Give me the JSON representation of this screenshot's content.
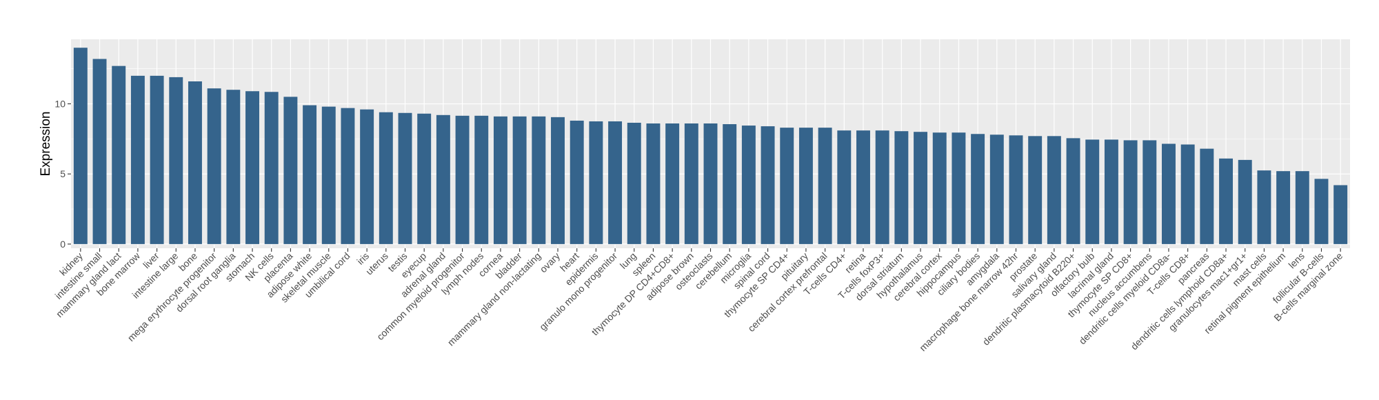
{
  "chart_data": {
    "type": "bar",
    "ylabel": "Expression",
    "xlabel": "",
    "ylim": [
      -0.3,
      14.6
    ],
    "yticks": [
      0,
      5,
      10
    ],
    "grid": true,
    "colors": {
      "bar": "#35648c",
      "panel": "#ebebeb",
      "grid": "#ffffff",
      "tick": "#333333"
    },
    "categories": [
      "kidney",
      "intestine small",
      "mammary gland lact",
      "bone marrow",
      "liver",
      "intestine large",
      "bone",
      "mega erythrocyte progenitor",
      "dorsal root ganglia",
      "stomach",
      "NK cells",
      "placenta",
      "adipose white",
      "skeletal muscle",
      "umbilical cord",
      "iris",
      "uterus",
      "testis",
      "eyecup",
      "adrenal gland",
      "common myeloid progenitor",
      "lymph nodes",
      "cornea",
      "bladder",
      "mammary gland non-lactating",
      "ovary",
      "heart",
      "epidermis",
      "granulo mono progenitor",
      "lung",
      "spleen",
      "thymocyte DP CD4+CD8+",
      "adipose brown",
      "osteoclasts",
      "cerebellum",
      "microglia",
      "spinal cord",
      "thymocyte SP CD4+",
      "pituitary",
      "cerebral cortex prefrontal",
      "T-cells CD4+",
      "retina",
      "T-cells foxP3+",
      "dorsal striatum",
      "hypothalamus",
      "cerebral cortex",
      "hippocampus",
      "ciliary bodies",
      "amygdala",
      "macrophage bone marrow 42hr",
      "prostate",
      "salivary gland",
      "dendritic plasmacytoid B220+",
      "olfactory bulb",
      "lacrimal gland",
      "thymocyte SP CD8+",
      "nucleus accumbens",
      "dendritic cells myeloid CD8a-",
      "T-cells CD8+",
      "pancreas",
      "dendritic cells lymphoid CD8a+",
      "granulocytes mac1+gr1+",
      "mast cells",
      "retinal pigment epithelium",
      "lens",
      "follicular B-cells",
      "B-cells marginal zone"
    ],
    "values": [
      14.0,
      13.2,
      12.7,
      12.0,
      12.0,
      11.9,
      11.6,
      11.1,
      11.0,
      10.9,
      10.85,
      10.5,
      9.9,
      9.8,
      9.7,
      9.6,
      9.4,
      9.35,
      9.3,
      9.2,
      9.15,
      9.15,
      9.1,
      9.1,
      9.1,
      9.05,
      8.8,
      8.75,
      8.75,
      8.65,
      8.6,
      8.6,
      8.6,
      8.6,
      8.55,
      8.45,
      8.4,
      8.3,
      8.3,
      8.3,
      8.1,
      8.1,
      8.1,
      8.05,
      8.0,
      7.95,
      7.95,
      7.85,
      7.8,
      7.75,
      7.7,
      7.7,
      7.55,
      7.45,
      7.45,
      7.4,
      7.4,
      7.15,
      7.1,
      6.8,
      6.1,
      6.0,
      5.25,
      5.2,
      5.2,
      4.65,
      4.2
    ]
  }
}
